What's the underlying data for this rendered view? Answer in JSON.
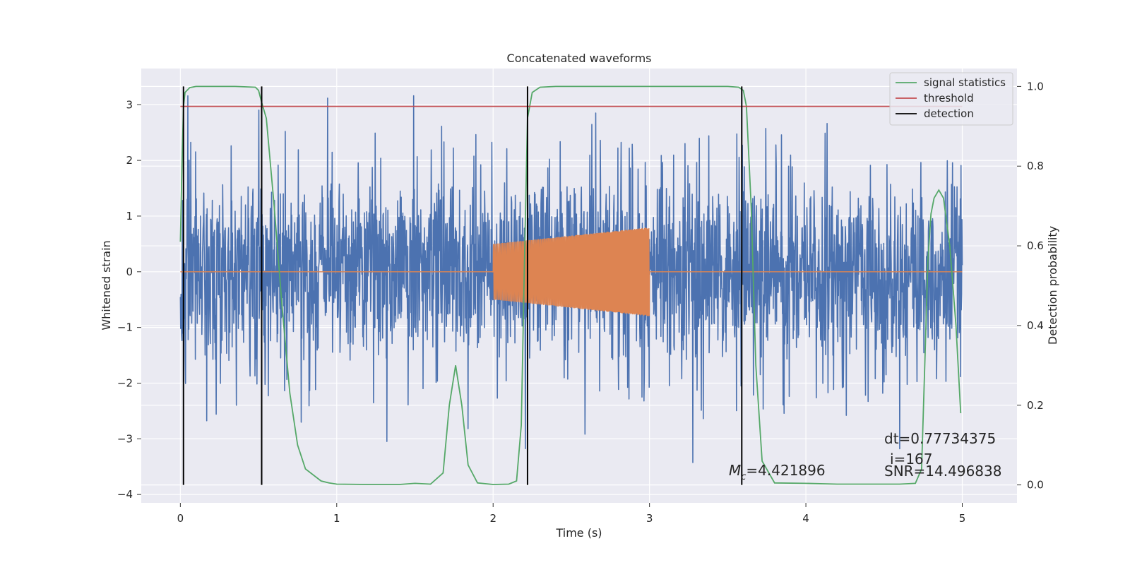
{
  "colors": {
    "background": "#ffffff",
    "plot_background": "#eaeaf2",
    "grid": "#ffffff",
    "strain": "#4c72b0",
    "injected_signal": "#dd8452",
    "signal_statistics": "#55a868",
    "threshold": "#c44e52",
    "detection": "#000000"
  },
  "chart_data": {
    "type": "line",
    "title": "Concatenated waveforms",
    "xlabel": "Time (s)",
    "ylabel": "Whitened strain",
    "ylabel_right": "Detection probability",
    "xlim": [
      -0.25,
      5.35
    ],
    "ylim": [
      -4.15,
      3.65
    ],
    "ylim_right": [
      -0.045,
      1.045
    ],
    "grid": true,
    "legend_position": "top-right",
    "x_ticks": [
      0,
      1,
      2,
      3,
      4,
      5
    ],
    "x_tick_labels": [
      "0",
      "1",
      "2",
      "3",
      "4",
      "5"
    ],
    "y_ticks": [
      -4,
      -3,
      -2,
      -1,
      0,
      1,
      2,
      3
    ],
    "y_tick_labels": [
      "−4",
      "−3",
      "−2",
      "−1",
      "0",
      "1",
      "2",
      "3"
    ],
    "y_right_ticks": [
      0.0,
      0.2,
      0.4,
      0.6,
      0.8,
      1.0
    ],
    "y_right_tick_labels": [
      "0.0",
      "0.2",
      "0.4",
      "0.6",
      "0.8",
      "1.0"
    ],
    "series": [
      {
        "kind": "noise",
        "x_range": [
          0,
          5
        ],
        "approx_std": 0.85,
        "approx_min": -3.8,
        "approx_max": 3.35
      },
      {
        "kind": "chirp",
        "x_range": [
          2.0,
          3.0
        ],
        "amplitude_start": 0.5,
        "amplitude_end": 0.8,
        "baseline": 0
      },
      {
        "name": "signal statistics",
        "axis": "right",
        "x": [
          0.0,
          0.01,
          0.02,
          0.03,
          0.06,
          0.1,
          0.2,
          0.35,
          0.48,
          0.5,
          0.52,
          0.55,
          0.6,
          0.65,
          0.7,
          0.75,
          0.8,
          0.9,
          0.95,
          1.0,
          1.2,
          1.4,
          1.5,
          1.6,
          1.68,
          1.72,
          1.76,
          1.8,
          1.84,
          1.9,
          2.0,
          2.1,
          2.15,
          2.18,
          2.2,
          2.22,
          2.25,
          2.3,
          2.4,
          2.8,
          3.2,
          3.5,
          3.57,
          3.6,
          3.62,
          3.65,
          3.68,
          3.72,
          3.8,
          4.0,
          4.2,
          4.4,
          4.6,
          4.7,
          4.74,
          4.76,
          4.78,
          4.8,
          4.82,
          4.85,
          4.88,
          4.92,
          4.96,
          4.99
        ],
        "y": [
          0.61,
          0.8,
          0.95,
          0.985,
          0.997,
          1.0,
          1.0,
          1.0,
          0.998,
          0.99,
          0.96,
          0.92,
          0.7,
          0.45,
          0.23,
          0.1,
          0.04,
          0.01,
          0.005,
          0.002,
          0.001,
          0.001,
          0.004,
          0.002,
          0.03,
          0.2,
          0.3,
          0.2,
          0.05,
          0.005,
          0.001,
          0.002,
          0.01,
          0.15,
          0.55,
          0.92,
          0.985,
          0.998,
          1.0,
          1.0,
          1.0,
          1.0,
          0.998,
          0.99,
          0.95,
          0.7,
          0.3,
          0.06,
          0.005,
          0.004,
          0.002,
          0.002,
          0.002,
          0.004,
          0.04,
          0.3,
          0.56,
          0.68,
          0.72,
          0.74,
          0.72,
          0.6,
          0.4,
          0.18
        ]
      },
      {
        "name": "threshold",
        "axis": "right",
        "x": [
          0,
          5
        ],
        "y": [
          0.95,
          0.95
        ]
      },
      {
        "name": "detection",
        "axis": "right",
        "type": "vlines",
        "x": [
          0.02,
          0.52,
          2.22,
          3.59
        ],
        "y_range": [
          0.0,
          1.0
        ]
      }
    ],
    "annotations": [
      {
        "text_prefix": "M",
        "subscript": "c",
        "text": "=4.421896"
      },
      {
        "text": "dt=0.77734375"
      },
      {
        "text": "i=167"
      },
      {
        "text": "SNR=14.496838"
      }
    ]
  }
}
